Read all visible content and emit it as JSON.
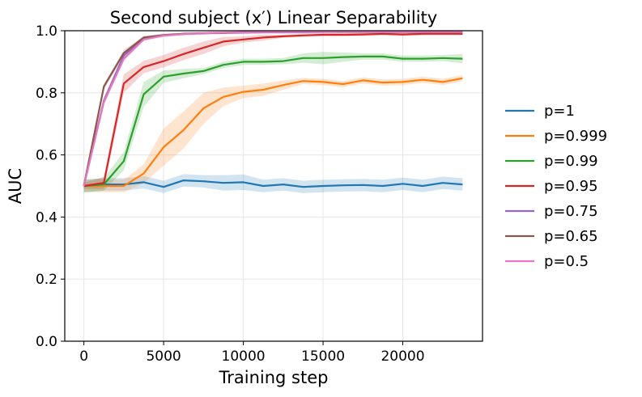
{
  "chart_data": {
    "type": "line",
    "title": "Second subject (x′) Linear Separability",
    "xlabel": "Training step",
    "ylabel": "AUC",
    "xlim": [
      -1200,
      25000
    ],
    "ylim": [
      0.0,
      1.0
    ],
    "xticks": [
      0,
      5000,
      10000,
      15000,
      20000
    ],
    "xtick_labels": [
      "0",
      "5000",
      "10000",
      "15000",
      "20000"
    ],
    "yticks": [
      0.0,
      0.2,
      0.4,
      0.6,
      0.8,
      1.0
    ],
    "ytick_labels": [
      "0.0",
      "0.2",
      "0.4",
      "0.6",
      "0.8",
      "1.0"
    ],
    "grid": true,
    "legend_position": "right, outside plot",
    "x": [
      0,
      1250,
      2500,
      3750,
      5000,
      6250,
      7500,
      8750,
      10000,
      11250,
      12500,
      13750,
      15000,
      16250,
      17500,
      18750,
      20000,
      21250,
      22500,
      23750
    ],
    "series": [
      {
        "name": "p=1",
        "color": "#1f77b4",
        "values": [
          0.5,
          0.505,
          0.505,
          0.512,
          0.497,
          0.518,
          0.515,
          0.51,
          0.512,
          0.5,
          0.505,
          0.497,
          0.5,
          0.502,
          0.503,
          0.5,
          0.507,
          0.5,
          0.51,
          0.505
        ],
        "band": [
          0.02,
          0.02,
          0.02,
          0.02,
          0.02,
          0.02,
          0.02,
          0.025,
          0.025,
          0.02,
          0.02,
          0.02,
          0.02,
          0.02,
          0.02,
          0.02,
          0.02,
          0.02,
          0.02,
          0.02
        ]
      },
      {
        "name": "p=0.999",
        "color": "#ff7f0e",
        "values": [
          0.5,
          0.5,
          0.5,
          0.54,
          0.625,
          0.68,
          0.75,
          0.787,
          0.803,
          0.81,
          0.825,
          0.838,
          0.835,
          0.828,
          0.84,
          0.833,
          0.835,
          0.842,
          0.835,
          0.847
        ],
        "band": [
          0.02,
          0.02,
          0.02,
          0.03,
          0.06,
          0.06,
          0.05,
          0.03,
          0.02,
          0.02,
          0.015,
          0.01,
          0.01,
          0.01,
          0.01,
          0.01,
          0.01,
          0.01,
          0.01,
          0.01
        ]
      },
      {
        "name": "p=0.99",
        "color": "#2ca02c",
        "values": [
          0.5,
          0.505,
          0.58,
          0.795,
          0.852,
          0.862,
          0.87,
          0.89,
          0.9,
          0.9,
          0.902,
          0.912,
          0.912,
          0.915,
          0.917,
          0.917,
          0.91,
          0.91,
          0.912,
          0.91
        ],
        "band": [
          0.02,
          0.02,
          0.03,
          0.04,
          0.02,
          0.015,
          0.01,
          0.01,
          0.01,
          0.01,
          0.01,
          0.015,
          0.02,
          0.015,
          0.01,
          0.01,
          0.01,
          0.01,
          0.01,
          0.015
        ]
      },
      {
        "name": "p=0.95",
        "color": "#d62728",
        "values": [
          0.5,
          0.51,
          0.83,
          0.883,
          0.902,
          0.925,
          0.945,
          0.965,
          0.972,
          0.978,
          0.982,
          0.985,
          0.987,
          0.987,
          0.988,
          0.99,
          0.988,
          0.99,
          0.99,
          0.99
        ],
        "band": [
          0.01,
          0.02,
          0.03,
          0.02,
          0.02,
          0.02,
          0.02,
          0.015,
          0.01,
          0.01,
          0.005,
          0.005,
          0.005,
          0.005,
          0.005,
          0.005,
          0.005,
          0.005,
          0.005,
          0.005
        ]
      },
      {
        "name": "p=0.75",
        "color": "#9467bd",
        "values": [
          0.5,
          0.775,
          0.92,
          0.975,
          0.985,
          0.99,
          0.992,
          0.993,
          0.994,
          0.995,
          0.995,
          0.995,
          0.996,
          0.996,
          0.996,
          0.996,
          0.996,
          0.996,
          0.996,
          0.996
        ],
        "band": [
          0.01,
          0.01,
          0.01,
          0.005,
          0.004,
          0.004,
          0.004,
          0.004,
          0.004,
          0.004,
          0.004,
          0.004,
          0.004,
          0.004,
          0.004,
          0.004,
          0.004,
          0.004,
          0.004,
          0.004
        ]
      },
      {
        "name": "p=0.65",
        "color": "#8c564b",
        "values": [
          0.5,
          0.82,
          0.928,
          0.978,
          0.986,
          0.99,
          0.992,
          0.993,
          0.995,
          0.996,
          0.996,
          0.996,
          0.997,
          0.997,
          0.997,
          0.997,
          0.997,
          0.997,
          0.997,
          0.997
        ],
        "band": [
          0.01,
          0.01,
          0.01,
          0.005,
          0.004,
          0.004,
          0.004,
          0.004,
          0.004,
          0.004,
          0.004,
          0.004,
          0.004,
          0.004,
          0.004,
          0.004,
          0.004,
          0.004,
          0.004,
          0.004
        ]
      },
      {
        "name": "p=0.5",
        "color": "#e377c2",
        "values": [
          0.5,
          0.77,
          0.91,
          0.972,
          0.984,
          0.989,
          0.992,
          0.994,
          0.995,
          0.996,
          0.996,
          0.996,
          0.996,
          0.997,
          0.997,
          0.997,
          0.997,
          0.997,
          0.997,
          0.997
        ],
        "band": [
          0.01,
          0.01,
          0.01,
          0.005,
          0.004,
          0.004,
          0.004,
          0.004,
          0.004,
          0.004,
          0.004,
          0.004,
          0.004,
          0.004,
          0.004,
          0.004,
          0.004,
          0.004,
          0.004,
          0.004
        ]
      }
    ]
  }
}
